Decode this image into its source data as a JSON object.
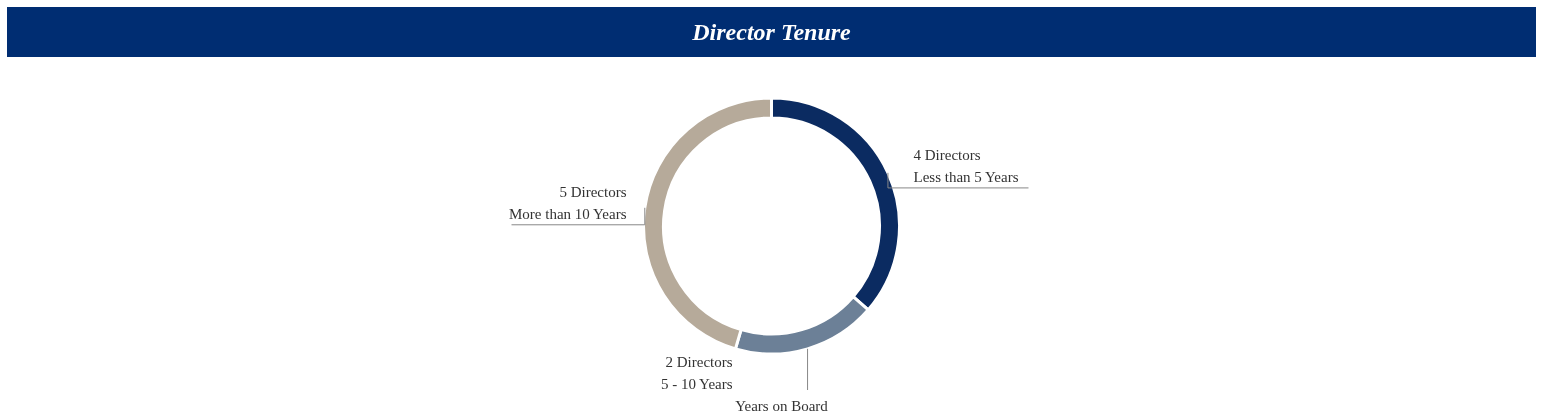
{
  "chart_data": {
    "type": "donut",
    "title": "Director Tenure",
    "categories": [
      "Less than 5 Years",
      "5 - 10 Years",
      "More than 10 Years"
    ],
    "values": [
      4,
      2,
      5
    ],
    "value_labels": [
      "4 Directors",
      "2 Directors",
      "5 Directors"
    ],
    "colors": [
      "#0b2b61",
      "#6c8097",
      "#b6aa9a"
    ],
    "annotations": [
      "Years on Board"
    ]
  }
}
